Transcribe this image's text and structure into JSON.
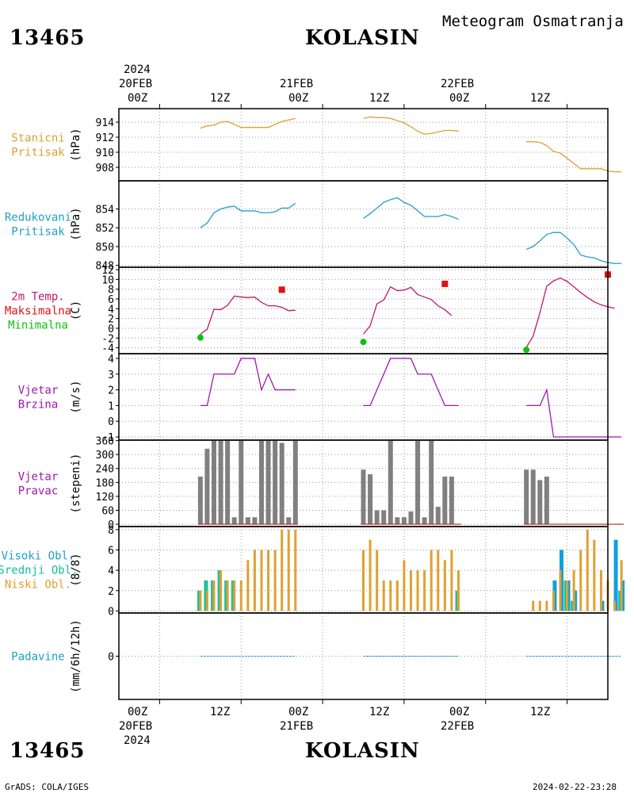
{
  "header": {
    "station_id": "13465",
    "station_name": "KOLASIN",
    "product_title": "Meteogram Osmatranja"
  },
  "footer": {
    "credit": "GrADS: COLA/IGES",
    "timestamp": "2024-02-22-23:28"
  },
  "time_axis": {
    "year": "2024",
    "labels_top": [
      {
        "time": "00Z",
        "date": "20FEB",
        "year": "2024"
      },
      {
        "time": "12Z"
      },
      {
        "time": "00Z",
        "date": "21FEB"
      },
      {
        "time": "12Z"
      },
      {
        "time": "00Z",
        "date": "22FEB"
      },
      {
        "time": "12Z"
      }
    ],
    "labels_bottom": [
      {
        "time": "00Z",
        "date": "20FEB",
        "year": "2024"
      },
      {
        "time": "12Z"
      },
      {
        "time": "00Z",
        "date": "21FEB"
      },
      {
        "time": "12Z"
      },
      {
        "time": "00Z",
        "date": "22FEB"
      },
      {
        "time": "12Z"
      }
    ],
    "x_range_hours": [
      -6,
      66
    ]
  },
  "chart_data": [
    {
      "type": "line",
      "id": "pressure",
      "label_lines": [
        "Stanicni",
        "Pritisak"
      ],
      "label_colors": [
        "#e0a030",
        "#e0a030"
      ],
      "ylabel": "(hPa)",
      "ylim": [
        906.2,
        915.8
      ],
      "yticks": [
        908,
        910,
        912,
        914
      ],
      "color": "#e0a030",
      "x_unit": "hours since 20FEB 00Z",
      "series": [
        {
          "x": [
            6,
            7,
            8,
            9,
            10,
            11,
            12,
            13,
            14,
            15,
            16,
            17,
            18,
            19,
            20
          ],
          "values": [
            913.2,
            913.5,
            913.6,
            914.0,
            914.1,
            913.7,
            913.3,
            913.3,
            913.3,
            913.3,
            913.3,
            913.7,
            914.1,
            914.3,
            914.5
          ]
        },
        {
          "x": [
            30,
            31,
            32,
            33,
            34,
            35,
            36,
            37,
            38,
            39,
            40,
            41,
            42,
            43,
            44
          ],
          "values": [
            914.5,
            914.7,
            914.6,
            914.6,
            914.5,
            914.2,
            913.9,
            913.4,
            912.8,
            912.4,
            912.5,
            912.7,
            912.9,
            912.9,
            912.8
          ]
        },
        {
          "x": [
            54,
            55,
            56,
            57,
            58,
            59,
            60,
            61,
            62,
            63,
            64,
            65,
            66,
            67,
            68
          ],
          "values": [
            911.4,
            911.4,
            911.3,
            910.9,
            910.1,
            909.9,
            909.2,
            908.5,
            907.8,
            907.8,
            907.8,
            907.8,
            907.5,
            907.4,
            907.4
          ]
        }
      ]
    },
    {
      "type": "line",
      "id": "reduced_pressure",
      "label_lines": [
        "Redukovani",
        "Pritisak"
      ],
      "label_colors": [
        "#1fa0c8",
        "#1fa0c8"
      ],
      "ylabel": "(hPa)",
      "ylim": [
        847.8,
        857.0
      ],
      "yticks": [
        848,
        850,
        852,
        854
      ],
      "color": "#1fa0c8",
      "x_unit": "hours since 20FEB 00Z",
      "series": [
        {
          "x": [
            6,
            7,
            8,
            9,
            10,
            11,
            12,
            13,
            14,
            15,
            16,
            17,
            18,
            19,
            20
          ],
          "values": [
            852.0,
            852.5,
            853.6,
            854.0,
            854.2,
            854.3,
            853.8,
            853.8,
            853.8,
            853.6,
            853.6,
            853.7,
            854.1,
            854.1,
            854.6
          ]
        },
        {
          "x": [
            30,
            31,
            32,
            33,
            34,
            35,
            36,
            37,
            38,
            39,
            40,
            41,
            42,
            43,
            44
          ],
          "values": [
            853.0,
            853.5,
            854.1,
            854.7,
            855.0,
            855.2,
            854.7,
            854.4,
            853.8,
            853.2,
            853.2,
            853.2,
            853.4,
            853.2,
            852.9
          ]
        },
        {
          "x": [
            54,
            55,
            56,
            57,
            58,
            59,
            60,
            61,
            62,
            63,
            64,
            65,
            66,
            67,
            68
          ],
          "values": [
            849.7,
            850.0,
            850.6,
            851.3,
            851.5,
            851.5,
            850.9,
            850.2,
            849.1,
            848.9,
            848.8,
            848.5,
            848.3,
            848.2,
            848.2
          ]
        }
      ]
    },
    {
      "type": "line",
      "id": "temperature",
      "label_lines": [
        "2m Temp.",
        "Maksimalna",
        "Minimalna"
      ],
      "label_colors": [
        "#c0186e",
        "#e01010",
        "#10c010"
      ],
      "ylabel": "(C)",
      "ylim": [
        -5.2,
        12.5
      ],
      "yticks": [
        -4,
        -2,
        0,
        2,
        4,
        6,
        8,
        10,
        12
      ],
      "color": "#c0186e",
      "x_unit": "hours since 20FEB 00Z",
      "series": [
        {
          "x": [
            6,
            7,
            8,
            9,
            10,
            11,
            12,
            13,
            14,
            15,
            16,
            17,
            18,
            19,
            20
          ],
          "values": [
            -1.2,
            -0.2,
            3.9,
            3.8,
            4.7,
            6.6,
            6.4,
            6.3,
            6.4,
            5.3,
            4.6,
            4.6,
            4.3,
            3.6,
            3.7
          ]
        },
        {
          "x": [
            30,
            31,
            32,
            33,
            34,
            35,
            36,
            37,
            38,
            39,
            40,
            41,
            42,
            43,
            44
          ],
          "values": [
            -1.2,
            0.5,
            5.0,
            5.8,
            8.5,
            7.7,
            7.8,
            8.4,
            6.9,
            6.4,
            5.9,
            4.6,
            3.8,
            2.6,
            null
          ]
        },
        {
          "x": [
            54,
            55,
            56,
            57,
            58,
            59,
            60,
            61,
            62,
            63,
            64,
            65,
            66,
            67,
            68
          ],
          "values": [
            -3.9,
            -1.6,
            3.2,
            8.6,
            9.7,
            10.3,
            9.6,
            8.5,
            7.3,
            6.3,
            5.4,
            4.8,
            4.4,
            4.1,
            null
          ]
        }
      ],
      "maxima": {
        "color": "#e01010",
        "x": [
          18,
          42,
          66
        ],
        "values": [
          7.9,
          9.1,
          11.0
        ]
      },
      "minima": {
        "color": "#10c010",
        "x": [
          6,
          30,
          54
        ],
        "values": [
          -1.9,
          -2.8,
          -4.4
        ]
      }
    },
    {
      "type": "line",
      "id": "wind_speed",
      "label_lines": [
        "Vjetar",
        "Brzina"
      ],
      "label_colors": [
        "#a018b0",
        "#a018b0"
      ],
      "ylabel": "(m/s)",
      "ylim": [
        -1.2,
        4.3
      ],
      "yticks": [
        -1,
        0,
        1,
        2,
        3,
        4
      ],
      "color": "#a018b0",
      "x_unit": "hours since 20FEB 00Z",
      "series": [
        {
          "x": [
            6,
            7,
            8,
            9,
            10,
            11,
            12,
            13,
            14,
            15,
            16,
            17,
            18,
            19,
            20
          ],
          "values": [
            1,
            1,
            3,
            3,
            3,
            3,
            4,
            4,
            4,
            2,
            3,
            2,
            2,
            2,
            2
          ]
        },
        {
          "x": [
            30,
            31,
            32,
            33,
            34,
            35,
            36,
            37,
            38,
            39,
            40,
            41,
            42,
            43,
            44
          ],
          "values": [
            1,
            1,
            2,
            3,
            4,
            4,
            4,
            4,
            3,
            3,
            3,
            2,
            1,
            1,
            1
          ]
        },
        {
          "x": [
            54,
            55,
            56,
            57,
            58,
            59,
            60,
            61,
            62,
            63,
            64,
            65,
            66,
            67,
            68
          ],
          "values": [
            1,
            1,
            1,
            2,
            -1,
            -1,
            -1,
            -1,
            -1,
            -1,
            -1,
            -1,
            -1,
            -1,
            -1
          ]
        }
      ]
    },
    {
      "type": "bar",
      "id": "wind_direction",
      "label_lines": [
        "Vjetar",
        "Pravac"
      ],
      "label_colors": [
        "#a018b0",
        "#a018b0"
      ],
      "ylabel": "(stepeni)",
      "ylim": [
        -10,
        362
      ],
      "yticks": [
        0,
        60,
        120,
        180,
        240,
        300,
        360
      ],
      "color": "#808080",
      "base_line_color": "#c02020",
      "x_unit": "hours since 20FEB 00Z",
      "x": [
        6,
        7,
        8,
        9,
        10,
        11,
        12,
        13,
        14,
        15,
        16,
        17,
        18,
        19,
        20,
        30,
        31,
        32,
        33,
        34,
        35,
        36,
        37,
        38,
        39,
        40,
        41,
        42,
        43,
        44,
        54,
        55,
        56,
        57,
        58,
        59,
        60,
        61,
        62,
        63,
        64,
        65,
        66,
        67,
        68
      ],
      "values": [
        205,
        325,
        360,
        360,
        360,
        30,
        360,
        30,
        30,
        360,
        360,
        360,
        350,
        30,
        360,
        235,
        215,
        60,
        60,
        360,
        30,
        30,
        55,
        360,
        30,
        360,
        75,
        205,
        205,
        0,
        235,
        235,
        190,
        205,
        0,
        0,
        0,
        0,
        0,
        0,
        0,
        0,
        0,
        0,
        0
      ]
    },
    {
      "type": "bar",
      "id": "cloud_cover",
      "label_lines": [
        "Visoki Obl.",
        "Srednji Obl.",
        "Niski Obl."
      ],
      "label_colors": [
        "#1fa0c8",
        "#10c0a0",
        "#e0a030"
      ],
      "ylabel": "(8/8)",
      "ylim": [
        -0.2,
        8.3
      ],
      "yticks": [
        0,
        2,
        4,
        6,
        8
      ],
      "x_unit": "hours since 20FEB 00Z",
      "x": [
        6,
        7,
        8,
        9,
        10,
        11,
        12,
        13,
        14,
        15,
        16,
        17,
        18,
        19,
        20,
        30,
        31,
        32,
        33,
        34,
        35,
        36,
        37,
        38,
        39,
        40,
        41,
        42,
        43,
        44,
        54,
        55,
        56,
        57,
        58,
        59,
        60,
        61,
        62,
        63,
        64,
        65,
        66,
        67,
        68
      ],
      "series": [
        {
          "name": "Visoki Obl.",
          "color": "#10a0e0",
          "values": [
            0,
            0,
            0,
            0,
            0,
            0,
            0,
            0,
            0,
            0,
            0,
            0,
            0,
            0,
            0,
            0,
            0,
            0,
            0,
            0,
            0,
            0,
            0,
            0,
            0,
            0,
            0,
            0,
            0,
            0,
            0,
            0,
            0,
            0,
            3,
            6,
            3,
            2,
            0,
            0,
            0,
            1,
            0,
            7,
            3
          ]
        },
        {
          "name": "Srednji Obl.",
          "color": "#20c0a0",
          "values": [
            2,
            3,
            3,
            4,
            3,
            3,
            0,
            0,
            0,
            0,
            0,
            0,
            0,
            0,
            0,
            0,
            0,
            0,
            0,
            0,
            0,
            0,
            0,
            0,
            0,
            0,
            0,
            0,
            0,
            2,
            0,
            0,
            0,
            0,
            0,
            0,
            3,
            1,
            0,
            0,
            0,
            0,
            0,
            0,
            2
          ]
        },
        {
          "name": "Niski Obl.",
          "color": "#e0a030",
          "values": [
            2,
            2,
            3,
            4,
            3,
            3,
            3,
            5,
            6,
            6,
            6,
            6,
            8,
            8,
            8,
            6,
            7,
            6,
            3,
            3,
            3,
            5,
            4,
            4,
            4,
            6,
            6,
            5,
            6,
            4,
            0,
            1,
            1,
            1,
            2,
            4,
            3,
            4,
            6,
            8,
            7,
            4,
            3,
            1,
            5
          ]
        }
      ]
    },
    {
      "type": "line",
      "id": "precipitation",
      "label_lines": [
        "Padavine"
      ],
      "label_colors": [
        "#1fa0c8"
      ],
      "ylabel": "(mm/6h/12h)",
      "ylim": [
        -1,
        1
      ],
      "yticks": [
        0
      ],
      "color": "#1fa0c8",
      "x_unit": "hours since 20FEB 00Z",
      "series": [
        {
          "x": [
            6,
            20
          ],
          "values": [
            0,
            0
          ]
        },
        {
          "x": [
            30,
            44
          ],
          "values": [
            0,
            0
          ]
        },
        {
          "x": [
            54,
            68
          ],
          "values": [
            0,
            0
          ]
        }
      ]
    }
  ]
}
